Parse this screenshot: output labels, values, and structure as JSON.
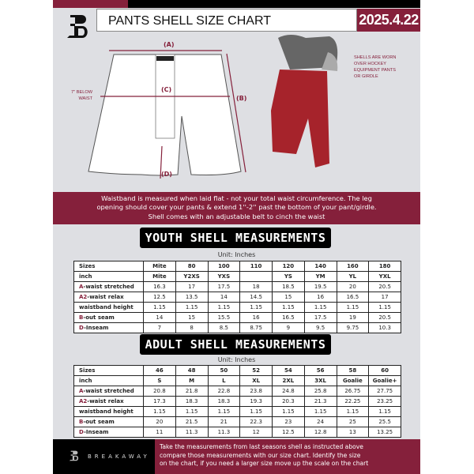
{
  "header": {
    "title": "PANTS SHELL SIZE CHART",
    "date": "2025.4.22"
  },
  "diagram": {
    "label_a": "(A)",
    "label_b": "(B)",
    "label_c": "(C)",
    "label_d": "(D)",
    "below_waist": [
      "7'' BELOW",
      "WAIST"
    ],
    "worn_note": [
      "SHELLS ARE WORN",
      "OVER HOCKEY",
      "EQUIPMENT PANTS",
      "OR GIRDLE"
    ]
  },
  "banner": [
    "Waistband is measured when laid flat - not your total waist circumference. The leg",
    "opening should cover your pants & extend 1''-2'' past the bottom of your pant/girdle.",
    "Shell comes with an adjustable belt to cinch the waist"
  ],
  "youth": {
    "title": "YOUTH SHELL MEASUREMENTS",
    "unit": "Unit: Inches",
    "rows": [
      {
        "prefix": "",
        "label": "Sizes",
        "values": [
          "Mite",
          "80",
          "100",
          "110",
          "120",
          "140",
          "160",
          "180"
        ]
      },
      {
        "prefix": "",
        "label": "inch",
        "values": [
          "Mite",
          "Y2XS",
          "YXS",
          "",
          "YS",
          "YM",
          "YL",
          "YXL"
        ]
      },
      {
        "prefix": "A",
        "label": "-waist stretched",
        "values": [
          "16.3",
          "17",
          "17.5",
          "18",
          "18.5",
          "19.5",
          "20",
          "20.5"
        ]
      },
      {
        "prefix": "A2",
        "label": "-waist relax",
        "values": [
          "12.5",
          "13.5",
          "14",
          "14.5",
          "15",
          "16",
          "16.5",
          "17"
        ]
      },
      {
        "prefix": "",
        "label": "waistband height",
        "values": [
          "1.15",
          "1.15",
          "1.15",
          "1.15",
          "1.15",
          "1.15",
          "1.15",
          "1.15"
        ]
      },
      {
        "prefix": "B",
        "label": "-out seam",
        "values": [
          "14",
          "15",
          "15.5",
          "16",
          "16.5",
          "17.5",
          "19",
          "20.5"
        ]
      },
      {
        "prefix": "D",
        "label": "-Inseam",
        "values": [
          "7",
          "8",
          "8.5",
          "8.75",
          "9",
          "9.5",
          "9.75",
          "10.3"
        ]
      }
    ]
  },
  "adult": {
    "title": "ADULT SHELL MEASUREMENTS",
    "unit": "Unit: Inches",
    "rows": [
      {
        "prefix": "",
        "label": "Sizes",
        "values": [
          "46",
          "48",
          "50",
          "52",
          "54",
          "56",
          "58",
          "60"
        ]
      },
      {
        "prefix": "",
        "label": "inch",
        "values": [
          "S",
          "M",
          "L",
          "XL",
          "2XL",
          "3XL",
          "Goalie",
          "Goalie+"
        ]
      },
      {
        "prefix": "A",
        "label": "-waist stretched",
        "values": [
          "20.8",
          "21.8",
          "22.8",
          "23.8",
          "24.8",
          "25.8",
          "26.75",
          "27.75"
        ]
      },
      {
        "prefix": "A2",
        "label": "-waist relax",
        "values": [
          "17.3",
          "18.3",
          "18.3",
          "19.3",
          "20.3",
          "21.3",
          "22.25",
          "23.25"
        ]
      },
      {
        "prefix": "",
        "label": "waistband height",
        "values": [
          "1.15",
          "1.15",
          "1.15",
          "1.15",
          "1.15",
          "1.15",
          "1.15",
          "1.15"
        ]
      },
      {
        "prefix": "B",
        "label": "-out seam",
        "values": [
          "20",
          "21.5",
          "21",
          "22.3",
          "23",
          "24",
          "25",
          "25.5"
        ]
      },
      {
        "prefix": "D",
        "label": "-Inseam",
        "values": [
          "11",
          "11.3",
          "11.3",
          "12",
          "12.5",
          "12.8",
          "13",
          "13.25"
        ]
      }
    ]
  },
  "footer": {
    "brand": "BREAKAWAY",
    "text": [
      "Take the measurements from last seasons shell as instructed above",
      "compare those measurements  with our size chart. Identify the size",
      "on the chart, if you need a larger size move up the scale on the chart"
    ]
  },
  "colors": {
    "accent": "#85203b",
    "shell": "#b0232b"
  }
}
